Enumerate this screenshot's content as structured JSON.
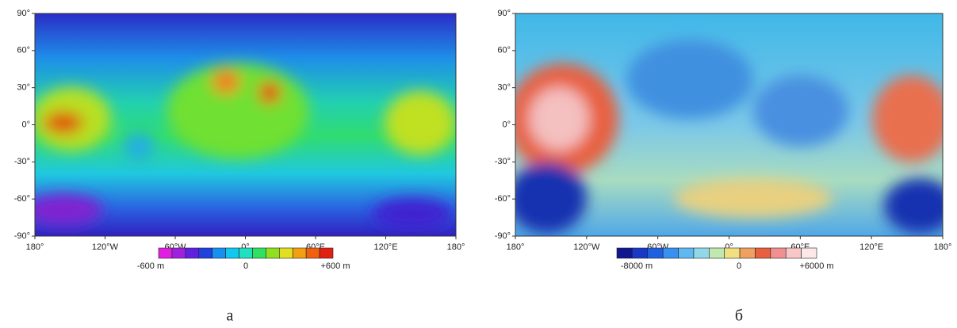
{
  "panels": [
    {
      "y_labels": [
        "90°",
        "60°",
        "30°",
        "0°",
        "-30°",
        "-60°",
        "-90°"
      ],
      "x_labels": [
        "180°",
        "120°W",
        "60°W",
        "0°",
        "60°E",
        "120°E",
        "180°"
      ],
      "colorbar_labels": [
        "-600 m",
        "0",
        "+600 m"
      ],
      "caption": "а"
    },
    {
      "y_labels": [
        "90°",
        "60°",
        "30°",
        "0°",
        "-30°",
        "-60°",
        "-90°"
      ],
      "x_labels": [
        "180°",
        "120°W",
        "60°W",
        "0°",
        "60°E",
        "120°E",
        "180°"
      ],
      "colorbar_labels": [
        "-8000 m",
        "0",
        "+6000 m"
      ],
      "caption": "б"
    }
  ]
}
